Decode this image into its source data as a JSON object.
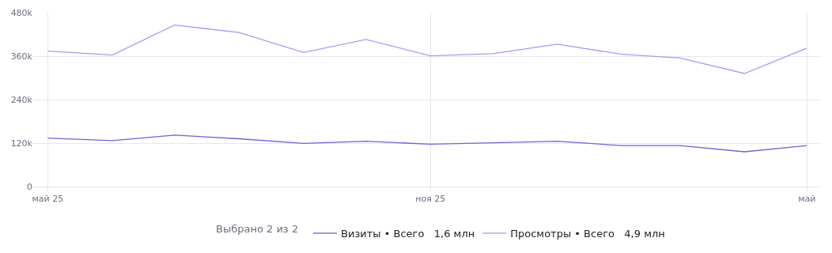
{
  "chart_data": {
    "type": "line",
    "x": [
      "2025-05",
      "2025-06",
      "2025-07",
      "2025-08",
      "2025-09",
      "2025-10",
      "2025-11",
      "2025-12",
      "2026-01",
      "2026-02",
      "2026-03",
      "2026-04",
      "2026-05"
    ],
    "series": [
      {
        "name": "Визиты • Всего   1,6 млн",
        "color": "#6c63d8",
        "values": [
          134000,
          127000,
          142000,
          132000,
          119000,
          125000,
          117000,
          121000,
          125000,
          113000,
          113000,
          96000,
          113000
        ]
      },
      {
        "name": "Просмотры • Всего   4,9 млн",
        "color": "#a39df0",
        "values": [
          374000,
          363000,
          446000,
          425000,
          370000,
          406000,
          361000,
          367000,
          393000,
          365000,
          355000,
          312000,
          382000
        ]
      }
    ],
    "xlim": [
      "2025-04-24",
      "2026-05-07"
    ],
    "xticks": [
      {
        "value": "2025-05",
        "label": "май 25"
      },
      {
        "value": "2025-11",
        "label": "ноя 25"
      },
      {
        "value": "2026-05",
        "label": "май"
      }
    ],
    "ylim": [
      0,
      480000
    ],
    "yticks": [
      0,
      {
        "value": 120000,
        "label": "120k"
      },
      {
        "value": 240000,
        "label": "240k"
      },
      {
        "value": 360000,
        "label": "360k"
      },
      {
        "value": 480000,
        "label": "480k"
      }
    ],
    "annotations": [
      "Выбрано 2 из 2"
    ],
    "grid": true,
    "legend": "bottom",
    "marker": "none",
    "line_style": "solid"
  }
}
